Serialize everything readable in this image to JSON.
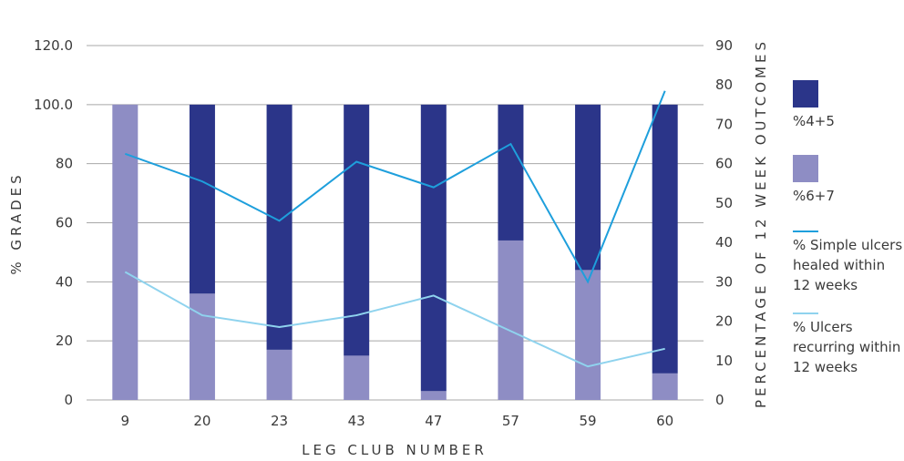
{
  "chart_data": {
    "type": "bar",
    "stacked": true,
    "categories": [
      "9",
      "20",
      "23",
      "43",
      "47",
      "57",
      "59",
      "60"
    ],
    "xlabel": "LEG CLUB NUMBER",
    "ylabel": "% GRADES",
    "y2label": "PERCENTAGE OF 12 WEEK OUTCOMES",
    "ylim": [
      0,
      120
    ],
    "y2lim": [
      0,
      90
    ],
    "y_ticks": [
      "0",
      "20",
      "40",
      "60",
      "80",
      "100.0",
      "120.0"
    ],
    "y2_ticks": [
      "0",
      "10",
      "20",
      "30",
      "40",
      "50",
      "60",
      "70",
      "80",
      "90"
    ],
    "grid": true,
    "legend_position": "right",
    "series": [
      {
        "name": "%4+5",
        "kind": "bar",
        "axis": "left",
        "color": "#2b3589",
        "values": [
          0,
          64,
          83,
          85,
          97,
          46,
          56,
          91
        ]
      },
      {
        "name": "%6+7",
        "kind": "bar",
        "axis": "left",
        "color": "#8e8dc4",
        "values": [
          100,
          36,
          17,
          15,
          3,
          54,
          44,
          9
        ]
      },
      {
        "name": "% Simple ulcers healed within 12 weeks",
        "kind": "line",
        "axis": "right",
        "color": "#1e9fdc",
        "values": [
          62.5,
          55.5,
          45.5,
          60.5,
          54,
          65,
          30,
          78.5
        ]
      },
      {
        "name": "% Ulcers recurring within 12 weeks",
        "kind": "line",
        "axis": "right",
        "color": "#8fd3ee",
        "values": [
          32.5,
          21.5,
          18.5,
          21.5,
          26.5,
          17.5,
          8.5,
          13
        ]
      }
    ],
    "legend": [
      {
        "label": "%4+5",
        "lines": [
          "%4+5"
        ]
      },
      {
        "label": "%6+7",
        "lines": [
          "%6+7"
        ]
      },
      {
        "label": "% Simple ulcers healed within 12 weeks",
        "lines": [
          "% Simple ulcers",
          "healed within",
          "12 weeks"
        ]
      },
      {
        "label": "% Ulcers recurring within 12 weeks",
        "lines": [
          "% Ulcers",
          "recurring within",
          "12 weeks"
        ]
      }
    ]
  }
}
